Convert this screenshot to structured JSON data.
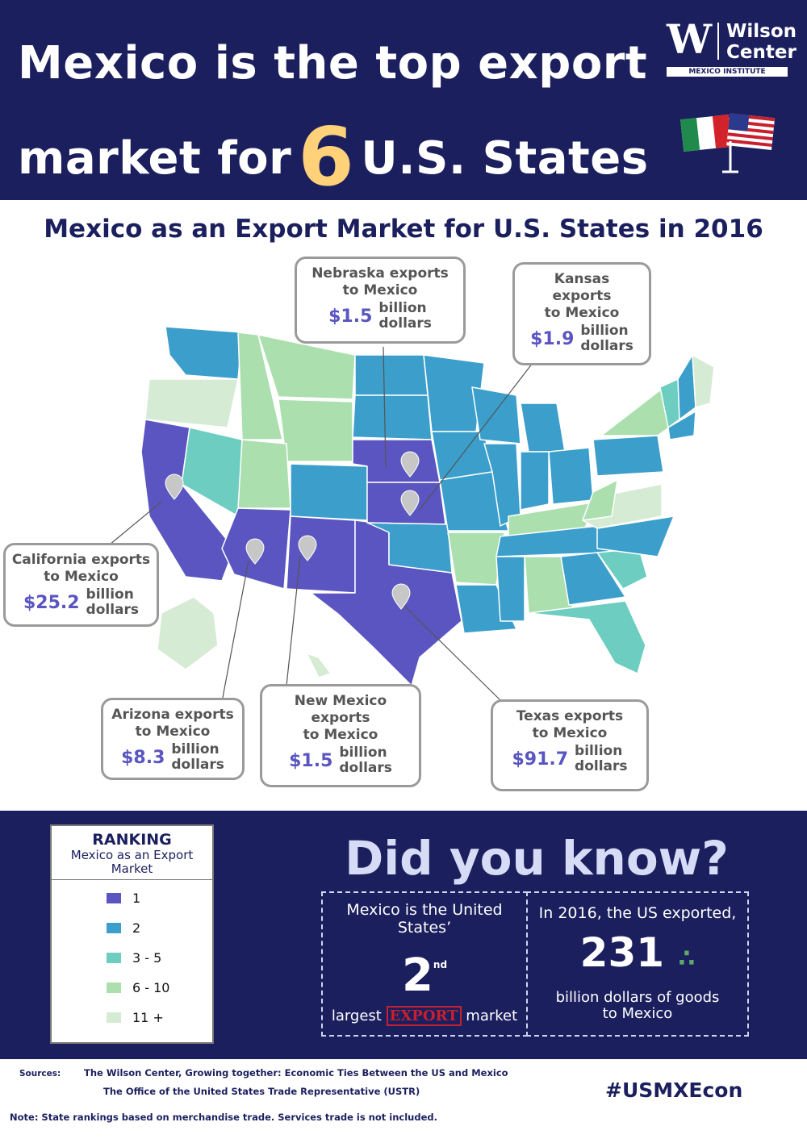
{
  "header": {
    "title_line1": "Mexico is the top export",
    "title_line2_prefix": "market for",
    "highlight": "6",
    "title_line2_suffix": "U.S. States",
    "logo": {
      "line1": "Wilson",
      "line2": "Center",
      "subtitle": "MEXICO INSTITUTE"
    }
  },
  "map": {
    "title": "Mexico as an Export Market for U.S. States in 2016"
  },
  "callouts": [
    {
      "lines": [
        "Nebraska exports",
        "to Mexico"
      ],
      "amount": "$1.5",
      "unit": [
        "billion",
        "dollars"
      ]
    },
    {
      "lines": [
        "Kansas",
        "exports",
        "to Mexico"
      ],
      "amount": "$1.9",
      "unit": [
        "billion",
        "dollars"
      ]
    },
    {
      "lines": [
        "California exports",
        "to Mexico"
      ],
      "amount": "$25.2",
      "unit": [
        "billion",
        "dollars"
      ]
    },
    {
      "lines": [
        "Arizona exports",
        "to Mexico"
      ],
      "amount": "$8.3",
      "unit": [
        "billion",
        "dollars"
      ]
    },
    {
      "lines": [
        "New Mexico",
        "exports",
        "to Mexico"
      ],
      "amount": "$1.5",
      "unit": [
        "billion",
        "dollars"
      ]
    },
    {
      "lines": [
        "Texas exports",
        "to Mexico"
      ],
      "amount": "$91.7",
      "unit": [
        "billion",
        "dollars"
      ]
    }
  ],
  "legend": {
    "title": "RANKING",
    "subtitle": "Mexico as an Export Market",
    "items": [
      {
        "label": "1",
        "color": "#5a55c0"
      },
      {
        "label": "2",
        "color": "#3b9ecb"
      },
      {
        "label": "3 - 5",
        "color": "#6ccdc0"
      },
      {
        "label": "6 - 10",
        "color": "#acdfae"
      },
      {
        "label": "11 +",
        "color": "#d6ebd3"
      }
    ]
  },
  "did_you_know": {
    "heading": "Did you know?",
    "fact1": {
      "text": "Mexico is the United States’",
      "ordinal": "2",
      "ordinal_suffix": "nd",
      "before": "largest",
      "stamp": "EXPORT",
      "after": "market"
    },
    "fact2": {
      "text": "In 2016, the US exported,",
      "amount": "231",
      "caption": "billion dollars of goods to Mexico"
    }
  },
  "footer": {
    "sources_label": "Sources:",
    "sources": [
      "The Wilson Center, Growing together: Economic Ties Between the US and Mexico",
      "The Office of the United States Trade Representative (USTR)"
    ],
    "hashtag": "#USMXEcon",
    "note": "Note:  State rankings based on merchandise trade.  Services trade is not included."
  }
}
